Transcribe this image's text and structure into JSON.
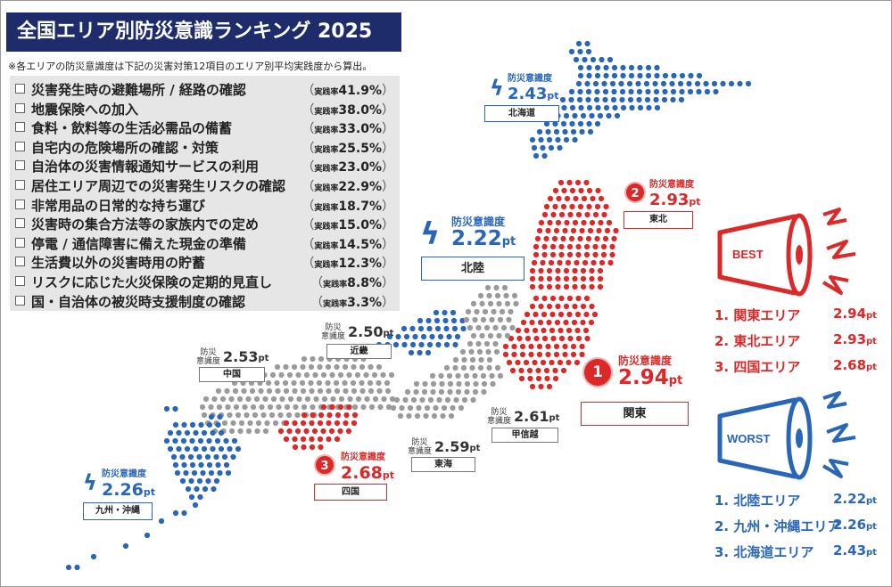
{
  "header": {
    "title": "全国エリア別防災意識ランキング 2025",
    "note": "※各エリアの防災意識度は下記の災害対策12項目のエリア別平均実践度から算出。"
  },
  "measures": [
    {
      "label": "災害発生時の避難場所 / 経路の確認",
      "rate": "41.9%"
    },
    {
      "label": "地震保険への加入",
      "rate": "38.0%"
    },
    {
      "label": "食料・飲料等の生活必需品の備蓄",
      "rate": "33.0%"
    },
    {
      "label": "自宅内の危険場所の確認・対策",
      "rate": "25.5%"
    },
    {
      "label": "自治体の災害情報通知サービスの利用",
      "rate": "23.0%"
    },
    {
      "label": "居住エリア周辺での災害発生リスクの確認",
      "rate": "22.9%"
    },
    {
      "label": "非常用品の日常的な持ち運び",
      "rate": "18.7%"
    },
    {
      "label": "災害時の集合方法等の家族内での定め",
      "rate": "15.0%"
    },
    {
      "label": "停電 / 通信障害に備えた現金の準備",
      "rate": "14.5%"
    },
    {
      "label": "生活費以外の災害時用の貯蓄",
      "rate": "12.3%"
    },
    {
      "label": "リスクに応じた火災保険の定期的見直し",
      "rate": "8.8%"
    },
    {
      "label": "国・自治体の被災時支援制度の確認",
      "rate": "3.3%"
    }
  ],
  "rate_label": "実践率",
  "paren_open": "（",
  "paren_close": "）",
  "index_label": "防災意識度",
  "index_label_line1": "防災",
  "index_label_line2": "意識度",
  "pt_unit": "pt",
  "chart_data": {
    "type": "table",
    "categories": [
      "関東",
      "東北",
      "四国",
      "甲信越",
      "近畿",
      "中国",
      "東海",
      "北海道",
      "九州・沖縄",
      "北陸"
    ],
    "series": [
      {
        "name": "防災意識度",
        "values": [
          2.94,
          2.93,
          2.68,
          2.61,
          2.5,
          2.53,
          2.59,
          2.43,
          2.26,
          2.22
        ]
      }
    ]
  },
  "regions": {
    "kanto": {
      "name": "関東",
      "score": "2.94",
      "rank": "1"
    },
    "tohoku": {
      "name": "東北",
      "score": "2.93",
      "rank": "2"
    },
    "shikoku": {
      "name": "四国",
      "score": "2.68",
      "rank": "3"
    },
    "koshinetsu": {
      "name": "甲信越",
      "score": "2.61"
    },
    "kinki": {
      "name": "近畿",
      "score": "2.50"
    },
    "chugoku": {
      "name": "中国",
      "score": "2.53"
    },
    "tokai": {
      "name": "東海",
      "score": "2.59"
    },
    "hokkaido": {
      "name": "北海道",
      "score": "2.43",
      "rank": "3"
    },
    "kyushu": {
      "name": "九州・沖縄",
      "score": "2.26",
      "rank": "2"
    },
    "hokuriku": {
      "name": "北陸",
      "score": "2.22",
      "rank": "1"
    }
  },
  "best": {
    "label": "BEST",
    "rows": [
      {
        "rank": "1.",
        "area": "関東エリア",
        "score": "2.94"
      },
      {
        "rank": "2.",
        "area": "東北エリア",
        "score": "2.93"
      },
      {
        "rank": "3.",
        "area": "四国エリア",
        "score": "2.68"
      }
    ]
  },
  "worst": {
    "label": "WORST",
    "rows": [
      {
        "rank": "1.",
        "area": "北陸エリア",
        "score": "2.22"
      },
      {
        "rank": "2.",
        "area": "九州・沖縄エリア",
        "score": "2.26"
      },
      {
        "rank": "3.",
        "area": "北海道エリア",
        "score": "2.43"
      }
    ]
  },
  "colors": {
    "blue": "#2a66b8",
    "red": "#dc2828",
    "gray": "#9a9a9a",
    "navy": "#1e2c6b"
  }
}
